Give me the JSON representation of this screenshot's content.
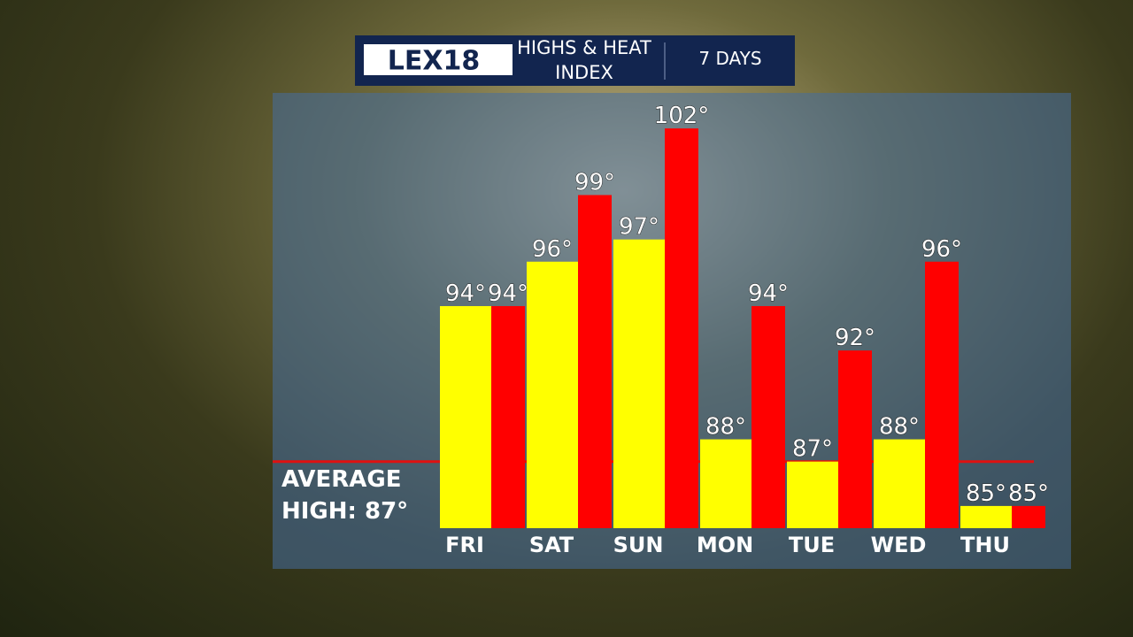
{
  "header": {
    "logo": "LEX18",
    "title": "HIGHS & HEAT INDEX",
    "subtitle": "7 DAYS"
  },
  "chart_data": {
    "type": "bar",
    "categories": [
      "FRI",
      "SAT",
      "SUN",
      "MON",
      "TUE",
      "WED",
      "THU"
    ],
    "series": [
      {
        "color": "#ffff00",
        "values": [
          94,
          96,
          97,
          88,
          87,
          88,
          85
        ],
        "value_labels": [
          "94°",
          "96°",
          "97°",
          "88°",
          "87°",
          "88°",
          "85°"
        ]
      },
      {
        "color": "#ff0000",
        "values": [
          94,
          99,
          102,
          94,
          92,
          96,
          85
        ],
        "value_labels": [
          "94°",
          "99°",
          "102°",
          "94°",
          "92°",
          "96°",
          "85°"
        ]
      }
    ],
    "ylim": [
      84,
      103.6
    ],
    "reference_line": {
      "value": 87,
      "label": "AVERAGE HIGH: 87°",
      "color": "#e01010"
    }
  }
}
